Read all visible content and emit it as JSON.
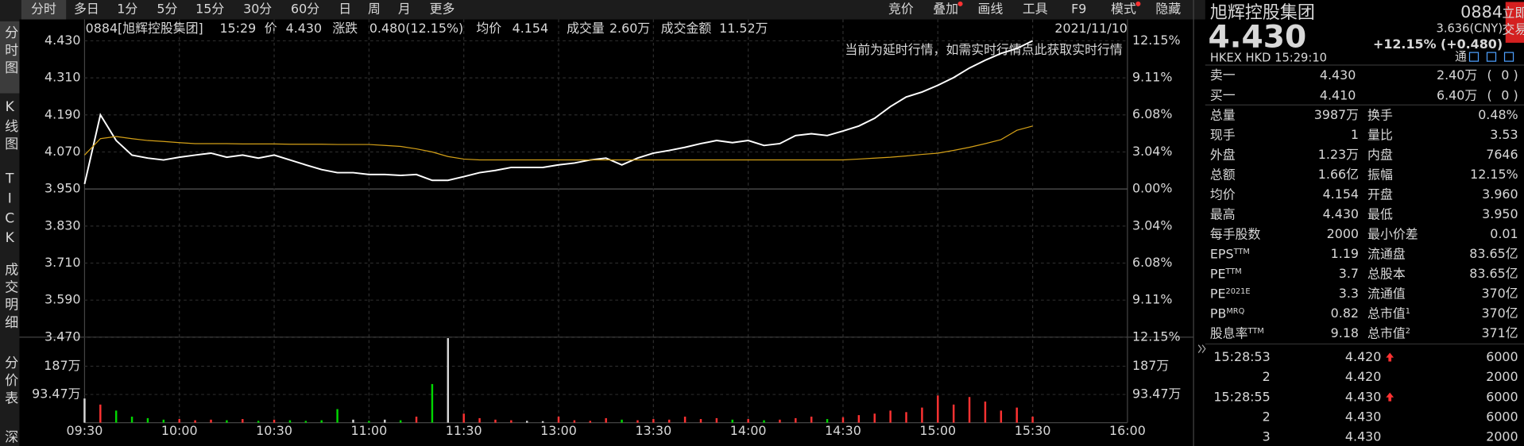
{
  "toolbar": {
    "tabs": [
      "分时",
      "多日",
      "1分",
      "5分",
      "15分",
      "30分",
      "60分",
      "日",
      "周",
      "月",
      "更多"
    ],
    "tools": [
      "竞价",
      "叠加",
      "画线",
      "工具",
      "F9",
      "模式",
      "隐藏"
    ]
  },
  "sidebar": [
    "分时图",
    "K线图",
    "TICK",
    "成交明细",
    "分价表",
    "深"
  ],
  "chart_header": {
    "code": "0884[旭辉控股集团]",
    "time": "15:29",
    "price_label": "价",
    "price": "4.430",
    "change_label": "涨跌",
    "change": "0.480(12.15%)",
    "avg_label": "均价",
    "avg": "4.154",
    "volume_label": "成交量",
    "volume": "2.60万",
    "amount_label": "成交金额",
    "amount": "11.52万",
    "date": "2021/11/10",
    "notice": "当前为延时行情，如需实时行情点此获取实时行情"
  },
  "chart_data": [
    {
      "type": "line",
      "x": [
        0,
        5,
        10,
        15,
        20,
        25,
        30,
        35,
        40,
        45,
        50,
        55,
        60,
        65,
        70,
        75,
        80,
        85,
        90,
        95,
        100,
        105,
        110,
        115,
        120,
        125,
        130,
        135,
        140,
        145,
        150,
        155,
        160,
        165,
        170,
        175,
        180,
        185,
        190,
        195,
        200,
        205,
        210,
        215,
        220,
        225,
        230,
        235,
        240,
        245,
        250,
        255,
        260,
        265,
        270,
        275,
        280,
        285,
        290,
        295,
        300
      ],
      "xlim": [
        0,
        330
      ],
      "xticks": [
        {
          "value": 0,
          "label": "09:30"
        },
        {
          "value": 30,
          "label": "10:00"
        },
        {
          "value": 60,
          "label": "10:30"
        },
        {
          "value": 90,
          "label": "11:00"
        },
        {
          "value": 120,
          "label": "11:30"
        },
        {
          "value": 150,
          "label": "13:00"
        },
        {
          "value": 180,
          "label": "13:30"
        },
        {
          "value": 210,
          "label": "14:00"
        },
        {
          "value": 240,
          "label": "14:30"
        },
        {
          "value": 270,
          "label": "15:00"
        },
        {
          "value": 300,
          "label": "15:30"
        },
        {
          "value": 330,
          "label": "16:00"
        }
      ],
      "ylim": [
        3.47,
        4.43
      ],
      "yticks": [
        {
          "value": 4.43,
          "label": "4.430"
        },
        {
          "value": 4.31,
          "label": "4.310"
        },
        {
          "value": 4.19,
          "label": "4.190"
        },
        {
          "value": 4.07,
          "label": "4.070"
        },
        {
          "value": 3.95,
          "label": "3.950"
        },
        {
          "value": 3.83,
          "label": "3.830"
        },
        {
          "value": 3.71,
          "label": "3.710"
        },
        {
          "value": 3.59,
          "label": "3.590"
        },
        {
          "value": 3.47,
          "label": "3.470"
        }
      ],
      "y2lim": [
        -12.15,
        12.15
      ],
      "y2ticks": [
        {
          "value": 12.15,
          "label": "12.15%"
        },
        {
          "value": 9.11,
          "label": "9.11%"
        },
        {
          "value": 6.08,
          "label": "6.08%"
        },
        {
          "value": 3.04,
          "label": "3.04%"
        },
        {
          "value": 0,
          "label": "0.00%"
        },
        {
          "value": -3.04,
          "label": "3.04%"
        },
        {
          "value": -6.08,
          "label": "6.08%"
        },
        {
          "value": -9.11,
          "label": "9.11%"
        },
        {
          "value": -12.15,
          "label": "12.15%"
        }
      ],
      "up_color": "#ff3232",
      "down_color": "#00d600",
      "grid": true,
      "series": [
        {
          "color": "#ffffff",
          "values": [
            3.966,
            4.19,
            4.107,
            4.06,
            4.05,
            4.044,
            4.053,
            4.06,
            4.066,
            4.053,
            4.06,
            4.05,
            4.06,
            4.044,
            4.028,
            4.013,
            4.003,
            4.003,
            3.997,
            3.997,
            3.994,
            3.997,
            3.978,
            3.978,
            3.99,
            4.003,
            4.01,
            4.02,
            4.02,
            4.02,
            4.028,
            4.034,
            4.044,
            4.05,
            4.028,
            4.05,
            4.066,
            4.075,
            4.085,
            4.097,
            4.107,
            4.1,
            4.107,
            4.091,
            4.097,
            4.123,
            4.129,
            4.123,
            4.138,
            4.154,
            4.179,
            4.217,
            4.248,
            4.264,
            4.286,
            4.311,
            4.342,
            4.367,
            4.389,
            4.405,
            4.43
          ]
        },
        {
          "color": "#d4a017",
          "values": [
            4.06,
            4.113,
            4.12,
            4.113,
            4.107,
            4.104,
            4.1,
            4.097,
            4.097,
            4.097,
            4.096,
            4.096,
            4.096,
            4.095,
            4.095,
            4.095,
            4.094,
            4.094,
            4.094,
            4.091,
            4.088,
            4.08,
            4.07,
            4.055,
            4.047,
            4.044,
            4.044,
            4.044,
            4.044,
            4.044,
            4.044,
            4.044,
            4.044,
            4.044,
            4.044,
            4.044,
            4.044,
            4.044,
            4.044,
            4.044,
            4.044,
            4.044,
            4.044,
            4.044,
            4.044,
            4.044,
            4.044,
            4.044,
            4.044,
            4.047,
            4.05,
            4.053,
            4.057,
            4.062,
            4.066,
            4.075,
            4.085,
            4.097,
            4.11,
            4.14,
            4.154
          ]
        }
      ]
    },
    {
      "type": "bar",
      "x": [
        0,
        5,
        10,
        15,
        20,
        25,
        30,
        35,
        40,
        45,
        50,
        55,
        60,
        65,
        70,
        75,
        80,
        85,
        90,
        95,
        100,
        105,
        110,
        115,
        120,
        125,
        130,
        135,
        140,
        145,
        150,
        155,
        160,
        165,
        170,
        175,
        180,
        185,
        190,
        195,
        200,
        205,
        210,
        215,
        220,
        225,
        230,
        235,
        240,
        245,
        250,
        255,
        260,
        265,
        270,
        275,
        280,
        285,
        290,
        295,
        300
      ],
      "xlim": [
        0,
        330
      ],
      "ylim": [
        0,
        280
      ],
      "yticks": [
        {
          "value": 187,
          "label": "187万"
        },
        {
          "value": 93.47,
          "label": "93.47万"
        }
      ],
      "colors": [
        "#ff3232",
        "#00d600",
        "#d8d8d8"
      ],
      "values": [
        80,
        60,
        40,
        20,
        15,
        10,
        12,
        8,
        10,
        8,
        12,
        6,
        10,
        8,
        6,
        8,
        45,
        10,
        6,
        10,
        8,
        20,
        128,
        280,
        30,
        15,
        10,
        8,
        6,
        5,
        20,
        8,
        6,
        15,
        10,
        8,
        12,
        10,
        20,
        12,
        15,
        10,
        12,
        8,
        10,
        15,
        20,
        12,
        18,
        25,
        30,
        40,
        35,
        50,
        90,
        60,
        85,
        70,
        40,
        50,
        20
      ]
    }
  ],
  "quote": {
    "name": "旭辉控股集团",
    "code": "0884",
    "price": "4.430",
    "cny": "3.636(CNY)",
    "change": "+12.15% (+0.480)",
    "button": [
      "立即",
      "交易"
    ],
    "market": "HKEX  HKD  15:29:10",
    "tong": "通"
  },
  "order_book": [
    {
      "l": "卖一",
      "p": "4.430",
      "v": "2.40万",
      "o": "(",
      "n": "0 )"
    },
    {
      "l": "买一",
      "p": "4.410",
      "v": "6.40万",
      "o": "(",
      "n": "0 )"
    }
  ],
  "stats": [
    {
      "l": "总量",
      "v": "3987万",
      "l2": "换手",
      "v2": "0.48%"
    },
    {
      "l": "现手",
      "v": "1",
      "l2": "量比",
      "v2": "3.53"
    },
    {
      "l": "外盘",
      "v": "1.23万",
      "c": "#ff3232",
      "l2": "内盘",
      "v2": "7646",
      "c2": "#00d600"
    },
    {
      "l": "总额",
      "v": "1.66亿",
      "l2": "振幅",
      "v2": "12.15%"
    },
    {
      "l": "均价",
      "v": "4.154",
      "c": "#ff3232",
      "l2": "开盘",
      "v2": "3.960",
      "c2": "#ff3232"
    },
    {
      "l": "最高",
      "v": "4.430",
      "c": "#ff3232",
      "l2": "最低",
      "v2": "3.950"
    },
    {
      "l": "每手股数",
      "v": "2000",
      "l2": "最小价差",
      "v2": "0.01"
    },
    {
      "l": "EPS",
      "s": "TTM",
      "v": "1.19",
      "l2": "流通盘",
      "v2": "83.65亿"
    },
    {
      "l": "PE",
      "s": "TTM",
      "v": "3.7",
      "l2": "总股本",
      "v2": "83.65亿"
    },
    {
      "l": "PE",
      "s": "2021E",
      "v": "3.3",
      "l2": "流通值",
      "v2": "370亿"
    },
    {
      "l": "PB",
      "s": "MRQ",
      "v": "0.82",
      "l2": "总市值",
      "s2": "1",
      "v2": "370亿"
    },
    {
      "l": "股息率",
      "s": "TTM",
      "v": "9.18",
      "l2": "总市值",
      "s2": "2",
      "v2": "371亿"
    }
  ],
  "trades": [
    {
      "t": "15:28:53",
      "p": "4.420",
      "up": true,
      "v": "6000"
    },
    {
      "t": "2",
      "p": "4.420",
      "v": "2000"
    },
    {
      "t": "15:28:55",
      "p": "4.430",
      "up": true,
      "v": "6000"
    },
    {
      "t": "2",
      "p": "4.430",
      "v": "6000"
    },
    {
      "t": "3",
      "p": "4.430",
      "v": "2000"
    }
  ]
}
